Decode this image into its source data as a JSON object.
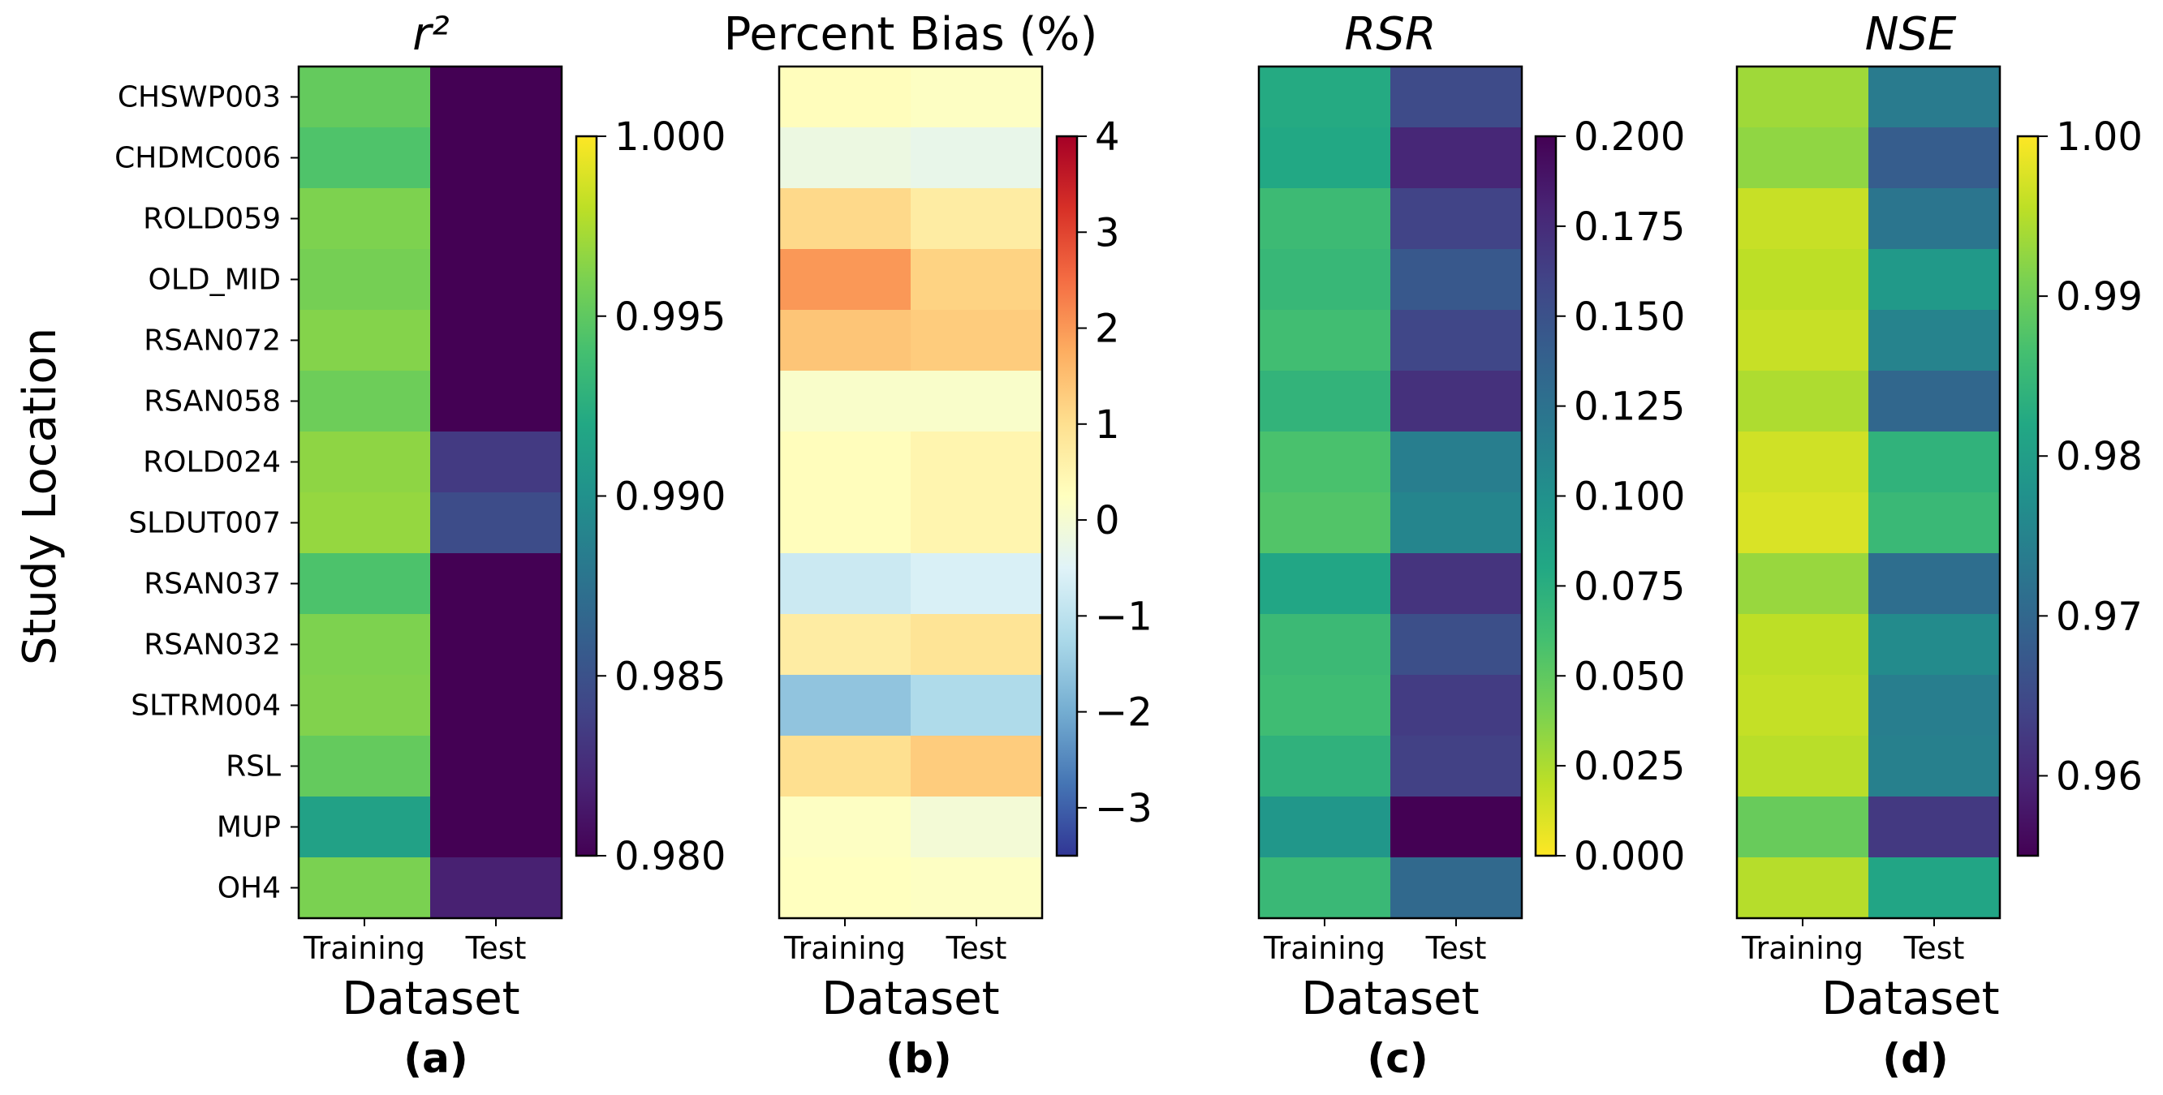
{
  "chart_data": [
    {
      "type": "heatmap",
      "panel_label": "(a)",
      "title": "r²",
      "xlabel": "Dataset",
      "ylabel": "Study Location",
      "columns": [
        "Training",
        "Test"
      ],
      "rows": [
        "CHSWP003",
        "CHDMC006",
        "ROLD059",
        "OLD_MID",
        "RSAN072",
        "RSAN058",
        "ROLD024",
        "SLDUT007",
        "RSAN037",
        "RSAN032",
        "SLTRM004",
        "RSL",
        "MUP",
        "OH4"
      ],
      "values": [
        [
          0.9952,
          0.98
        ],
        [
          0.9944,
          0.98
        ],
        [
          0.9961,
          0.98
        ],
        [
          0.9958,
          0.98
        ],
        [
          0.9963,
          0.98
        ],
        [
          0.9955,
          0.98
        ],
        [
          0.9966,
          0.9834
        ],
        [
          0.9968,
          0.9846
        ],
        [
          0.9943,
          0.98
        ],
        [
          0.9961,
          0.98
        ],
        [
          0.9962,
          0.98
        ],
        [
          0.9952,
          0.98
        ],
        [
          0.9914,
          0.98
        ],
        [
          0.996,
          0.9818
        ]
      ],
      "colorbar": {
        "colormap": "viridis",
        "reversed": false,
        "range": [
          0.98,
          1.0
        ],
        "ticks": [
          0.98,
          0.985,
          0.99,
          0.995,
          1.0
        ],
        "tick_labels": [
          "0.980",
          "0.985",
          "0.990",
          "0.995",
          "1.000"
        ]
      }
    },
    {
      "type": "heatmap",
      "panel_label": "(b)",
      "title": "Percent Bias (%)",
      "xlabel": "Dataset",
      "ylabel": "",
      "columns": [
        "Training",
        "Test"
      ],
      "rows": [
        "CHSWP003",
        "CHDMC006",
        "ROLD059",
        "OLD_MID",
        "RSAN072",
        "RSAN058",
        "ROLD024",
        "SLDUT007",
        "RSAN037",
        "RSAN032",
        "SLTRM004",
        "RSL",
        "MUP",
        "OH4"
      ],
      "values": [
        [
          0.3,
          0.2
        ],
        [
          -0.2,
          -0.3
        ],
        [
          1.1,
          0.7
        ],
        [
          2.0,
          1.2
        ],
        [
          1.4,
          1.3
        ],
        [
          0.1,
          0.1
        ],
        [
          0.3,
          0.5
        ],
        [
          0.3,
          0.5
        ],
        [
          -0.8,
          -0.6
        ],
        [
          0.7,
          0.9
        ],
        [
          -1.6,
          -1.2
        ],
        [
          1.0,
          1.3
        ],
        [
          0.2,
          -0.05
        ],
        [
          0.25,
          0.2
        ]
      ],
      "colorbar": {
        "colormap": "RdYlBu_r",
        "reversed": false,
        "range": [
          -3.5,
          4
        ],
        "ticks": [
          -3,
          -2,
          -1,
          0,
          1,
          2,
          3,
          4
        ],
        "tick_labels": [
          "−3",
          "−2",
          "−1",
          "0",
          "1",
          "2",
          "3",
          "4"
        ]
      }
    },
    {
      "type": "heatmap",
      "panel_label": "(c)",
      "title": "RSR",
      "xlabel": "Dataset",
      "ylabel": "",
      "columns": [
        "Training",
        "Test"
      ],
      "rows": [
        "CHSWP003",
        "CHDMC006",
        "ROLD059",
        "OLD_MID",
        "RSAN072",
        "RSAN058",
        "ROLD024",
        "SLDUT007",
        "RSAN037",
        "RSAN032",
        "SLTRM004",
        "RSL",
        "MUP",
        "OH4"
      ],
      "values": [
        [
          0.078,
          0.155
        ],
        [
          0.08,
          0.178
        ],
        [
          0.064,
          0.16
        ],
        [
          0.067,
          0.145
        ],
        [
          0.062,
          0.158
        ],
        [
          0.07,
          0.172
        ],
        [
          0.058,
          0.115
        ],
        [
          0.055,
          0.11
        ],
        [
          0.082,
          0.17
        ],
        [
          0.065,
          0.152
        ],
        [
          0.063,
          0.165
        ],
        [
          0.072,
          0.162
        ],
        [
          0.095,
          0.2
        ],
        [
          0.066,
          0.132
        ]
      ],
      "colorbar": {
        "colormap": "viridis",
        "reversed": true,
        "range": [
          0,
          0.2
        ],
        "ticks": [
          0,
          0.025,
          0.05,
          0.075,
          0.1,
          0.125,
          0.15,
          0.175,
          0.2
        ],
        "tick_labels": [
          "0.000",
          "0.025",
          "0.050",
          "0.075",
          "0.100",
          "0.125",
          "0.150",
          "0.175",
          "0.200"
        ]
      }
    },
    {
      "type": "heatmap",
      "panel_label": "(d)",
      "title": "NSE",
      "xlabel": "Dataset",
      "ylabel": "",
      "columns": [
        "Training",
        "Test"
      ],
      "rows": [
        "CHSWP003",
        "CHDMC006",
        "ROLD059",
        "OLD_MID",
        "RSAN072",
        "RSAN058",
        "ROLD024",
        "SLDUT007",
        "RSAN037",
        "RSAN032",
        "SLTRM004",
        "RSL",
        "MUP",
        "OH4"
      ],
      "values": [
        [
          0.9935,
          0.9735
        ],
        [
          0.9925,
          0.9682
        ],
        [
          0.9962,
          0.9725
        ],
        [
          0.9955,
          0.979
        ],
        [
          0.9962,
          0.975
        ],
        [
          0.9945,
          0.97
        ],
        [
          0.9968,
          0.984
        ],
        [
          0.9975,
          0.9852
        ],
        [
          0.993,
          0.9712
        ],
        [
          0.9955,
          0.9765
        ],
        [
          0.996,
          0.974
        ],
        [
          0.9952,
          0.9745
        ],
        [
          0.9895,
          0.9625
        ],
        [
          0.995,
          0.9815
        ]
      ],
      "colorbar": {
        "colormap": "viridis",
        "reversed": false,
        "range": [
          0.955,
          1.0
        ],
        "ticks": [
          0.96,
          0.97,
          0.98,
          0.99,
          1.0
        ],
        "tick_labels": [
          "0.96",
          "0.97",
          "0.98",
          "0.99",
          "1.00"
        ]
      }
    }
  ]
}
